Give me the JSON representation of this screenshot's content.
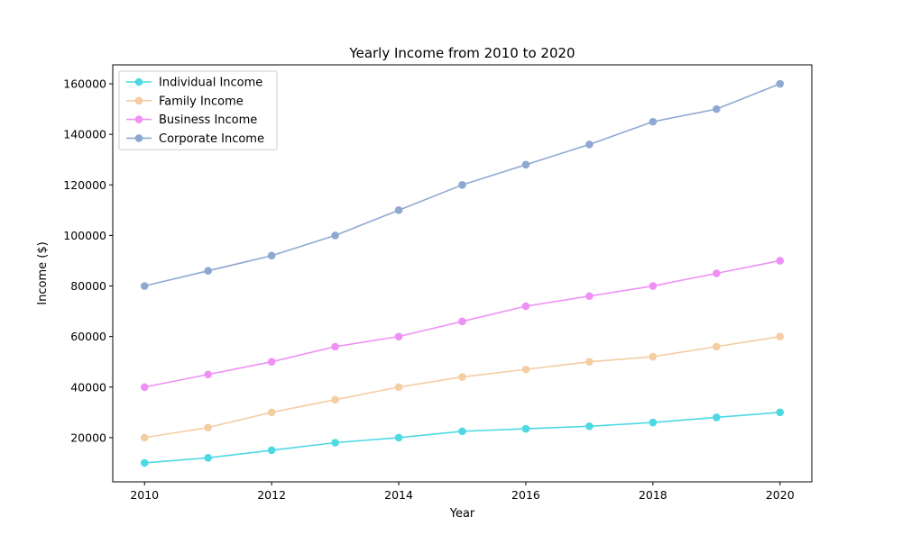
{
  "chart_data": {
    "type": "line",
    "title": "Yearly Income from 2010 to 2020",
    "xlabel": "Year",
    "ylabel": "Income ($)",
    "x": [
      2010,
      2011,
      2012,
      2013,
      2014,
      2015,
      2016,
      2017,
      2018,
      2019,
      2020
    ],
    "xlim": [
      2009.5,
      2020.5
    ],
    "ylim": [
      2500,
      167500
    ],
    "x_ticks": [
      2010,
      2012,
      2014,
      2016,
      2018,
      2020
    ],
    "y_ticks": [
      20000,
      40000,
      60000,
      80000,
      100000,
      120000,
      140000,
      160000
    ],
    "grid": false,
    "legend_position": "top-left",
    "series": [
      {
        "name": "Individual Income",
        "color": "#4dd9e3",
        "values": [
          10000,
          12000,
          15000,
          18000,
          20000,
          22500,
          23500,
          24500,
          26000,
          28000,
          30000
        ]
      },
      {
        "name": "Family Income",
        "color": "#f5cda3",
        "values": [
          20000,
          24000,
          30000,
          35000,
          40000,
          44000,
          47000,
          50000,
          52000,
          56000,
          60000
        ]
      },
      {
        "name": "Business Income",
        "color": "#ef90f5",
        "values": [
          40000,
          45000,
          50000,
          56000,
          60000,
          66000,
          72000,
          76000,
          80000,
          85000,
          90000
        ]
      },
      {
        "name": "Corporate Income",
        "color": "#8fa8d1",
        "values": [
          80000,
          86000,
          92000,
          100000,
          110000,
          120000,
          128000,
          136000,
          145000,
          150000,
          160000
        ]
      }
    ]
  }
}
